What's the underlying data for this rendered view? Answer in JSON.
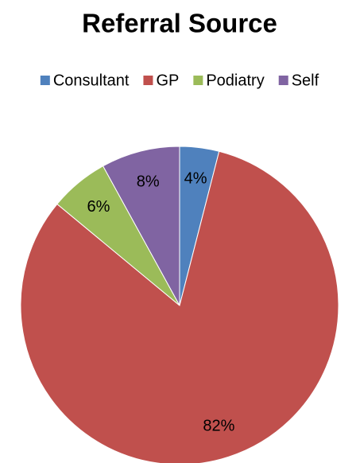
{
  "chart_data": {
    "type": "pie",
    "title": "Referral Source",
    "categories": [
      "Consultant",
      "GP",
      "Podiatry",
      "Self"
    ],
    "values": [
      4,
      82,
      6,
      8
    ],
    "value_labels": [
      "4%",
      "82%",
      "6%",
      "8%"
    ],
    "colors": [
      "#4f81bd",
      "#c0504d",
      "#9bbb59",
      "#8064a2"
    ],
    "legend": "top"
  }
}
